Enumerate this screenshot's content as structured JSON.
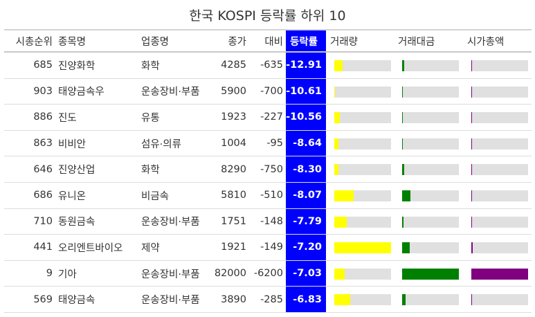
{
  "title": "한국 KOSPI 등락률 하위 10",
  "headers": {
    "rank": "시총순위",
    "name": "종목명",
    "industry": "업종명",
    "close": "종가",
    "diff": "대비",
    "rate": "등락률",
    "volume": "거래량",
    "amount": "거래대금",
    "cap": "시가총액"
  },
  "colors": {
    "rate_bg": "#0000ff",
    "volume_bar": "#ffff00",
    "amount_bar": "#008000",
    "cap_bar": "#800080",
    "bar_track": "#e0e0e0"
  },
  "rows": [
    {
      "rank": "685",
      "name": "진양화학",
      "industry": "화학",
      "close": "4285",
      "diff": "-635",
      "rate": "-12.91",
      "volume_frac": 0.15,
      "amount_frac": 0.04,
      "cap_frac": 0.01
    },
    {
      "rank": "903",
      "name": "태양금속우",
      "industry": "운송장비·부품",
      "close": "5900",
      "diff": "-700",
      "rate": "-10.61",
      "volume_frac": 0.01,
      "amount_frac": 0.01,
      "cap_frac": 0.0
    },
    {
      "rank": "886",
      "name": "진도",
      "industry": "유통",
      "close": "1923",
      "diff": "-227",
      "rate": "-10.56",
      "volume_frac": 0.1,
      "amount_frac": 0.015,
      "cap_frac": 0.0
    },
    {
      "rank": "863",
      "name": "비비안",
      "industry": "섬유·의류",
      "close": "1004",
      "diff": "-95",
      "rate": "-8.64",
      "volume_frac": 0.07,
      "amount_frac": 0.01,
      "cap_frac": 0.01
    },
    {
      "rank": "646",
      "name": "진양산업",
      "industry": "화학",
      "close": "8290",
      "diff": "-750",
      "rate": "-8.30",
      "volume_frac": 0.07,
      "amount_frac": 0.04,
      "cap_frac": 0.01
    },
    {
      "rank": "686",
      "name": "유니온",
      "industry": "비금속",
      "close": "5810",
      "diff": "-510",
      "rate": "-8.07",
      "volume_frac": 0.34,
      "amount_frac": 0.15,
      "cap_frac": 0.01
    },
    {
      "rank": "710",
      "name": "동원금속",
      "industry": "운송장비·부품",
      "close": "1751",
      "diff": "-148",
      "rate": "-7.79",
      "volume_frac": 0.22,
      "amount_frac": 0.03,
      "cap_frac": 0.01
    },
    {
      "rank": "441",
      "name": "오리엔트바이오",
      "industry": "제약",
      "close": "1921",
      "diff": "-149",
      "rate": "-7.20",
      "volume_frac": 1.0,
      "amount_frac": 0.14,
      "cap_frac": 0.02
    },
    {
      "rank": "9",
      "name": "기아",
      "industry": "운송장비·부품",
      "close": "82000",
      "diff": "-6200",
      "rate": "-7.03",
      "volume_frac": 0.18,
      "amount_frac": 1.0,
      "cap_frac": 1.0
    },
    {
      "rank": "569",
      "name": "태양금속",
      "industry": "운송장비·부품",
      "close": "3890",
      "diff": "-285",
      "rate": "-6.83",
      "volume_frac": 0.28,
      "amount_frac": 0.06,
      "cap_frac": 0.01
    }
  ]
}
